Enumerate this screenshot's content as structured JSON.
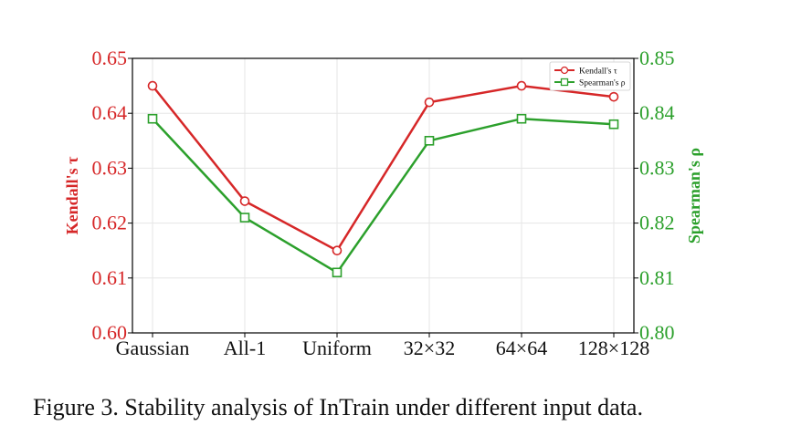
{
  "chart_data": {
    "type": "line",
    "categories": [
      "Gaussian",
      "All-1",
      "Uniform",
      "32×32",
      "64×64",
      "128×128"
    ],
    "series": [
      {
        "name": "Kendall's τ",
        "axis": "left",
        "color": "#d62728",
        "marker": "circle",
        "values": [
          0.645,
          0.624,
          0.615,
          0.642,
          0.645,
          0.643
        ]
      },
      {
        "name": "Spearman's ρ",
        "axis": "right",
        "color": "#2ca02c",
        "marker": "square",
        "values": [
          0.839,
          0.821,
          0.811,
          0.835,
          0.839,
          0.838
        ]
      }
    ],
    "ylabel_left": "Kendall's τ",
    "ylabel_right": "Spearman's ρ",
    "ylim_left": [
      0.6,
      0.65
    ],
    "ylim_right": [
      0.8,
      0.85
    ],
    "yticks_left": [
      "0.60",
      "0.61",
      "0.62",
      "0.63",
      "0.64",
      "0.65"
    ],
    "yticks_right": [
      "0.80",
      "0.81",
      "0.82",
      "0.83",
      "0.84",
      "0.85"
    ],
    "grid": true,
    "legend_position": "top-right",
    "left_axis_color": "#d62728",
    "right_axis_color": "#2ca02c"
  },
  "caption": "Figure 3. Stability analysis of InTrain under different input data."
}
